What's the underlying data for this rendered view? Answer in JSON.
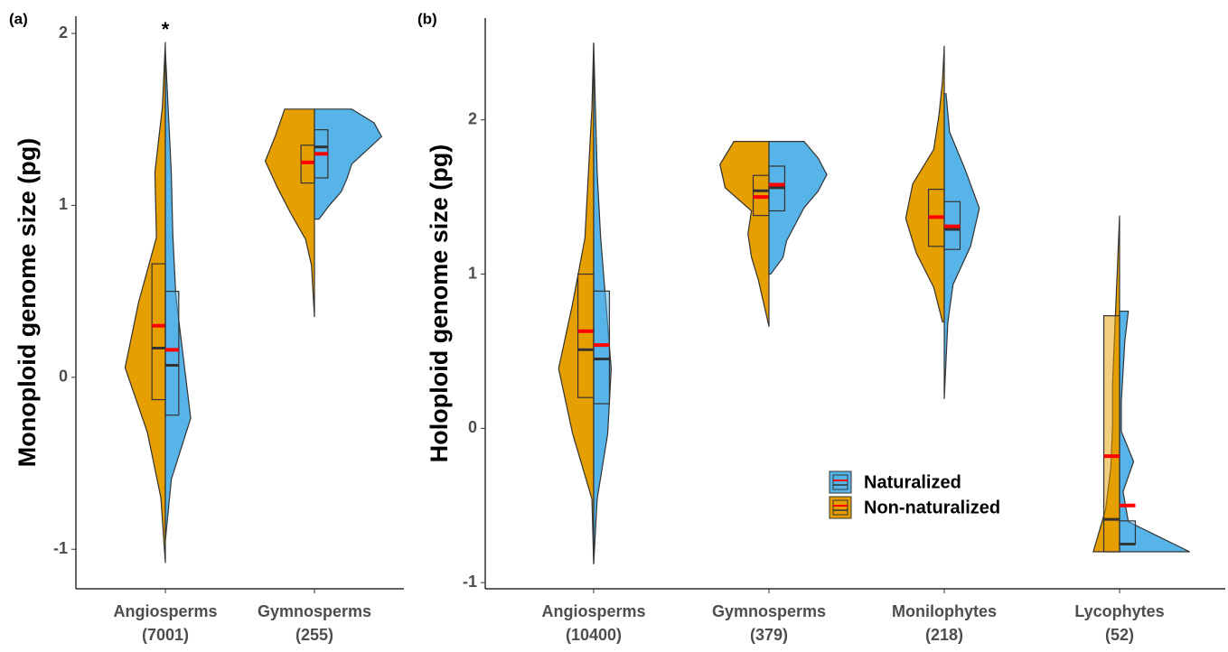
{
  "chart_data": [
    {
      "type": "violin",
      "panel_label": "(a)",
      "ylabel": "Monoploid genome size (pg)",
      "annotation": "*",
      "categories": [
        "Angiosperms",
        "Gymnosperms"
      ],
      "category_counts": [
        "(7001)",
        "(255)"
      ],
      "ylim": [
        -1.23,
        2.1
      ],
      "yticks": [
        -1,
        0,
        1,
        2
      ],
      "series": [
        {
          "name": "Non-naturalized",
          "color": "#E69F00",
          "q1": [
            -0.13,
            1.13
          ],
          "median": [
            0.17,
            1.25
          ],
          "q3": [
            0.66,
            1.35
          ],
          "mean": [
            0.3,
            1.25
          ],
          "min": [
            -1.08,
            0.35
          ],
          "max": [
            1.95,
            1.56
          ],
          "density": [
            [
              0,
              0.03,
              0.12,
              0.27,
              0.18,
              0.06,
              0.07,
              0.02,
              0
            ],
            [
              0,
              0.01,
              0.02,
              0.06,
              0.16,
              0.25,
              0.33,
              0.26,
              0.2
            ]
          ]
        },
        {
          "name": "Naturalized",
          "color": "#56B4E9",
          "q1": [
            -0.22,
            1.16
          ],
          "median": [
            0.07,
            1.34
          ],
          "q3": [
            0.5,
            1.44
          ],
          "mean": [
            0.16,
            1.3
          ],
          "min": [
            -0.95,
            0.92
          ],
          "max": [
            1.9,
            1.56
          ],
          "density": [
            [
              0,
              0.04,
              0.17,
              0.12,
              0.07,
              0.05,
              0.04,
              0.02,
              0
            ],
            [
              0.03,
              0.1,
              0.18,
              0.22,
              0.25,
              0.35,
              0.45,
              0.4,
              0.25
            ]
          ]
        }
      ]
    },
    {
      "type": "violin",
      "panel_label": "(b)",
      "ylabel": "Holoploid genome size (pg)",
      "legend": "inside",
      "categories": [
        "Angiosperms",
        "Gymnosperms",
        "Monilophytes",
        "Lycophytes"
      ],
      "category_counts": [
        "(10400)",
        "(379)",
        "(218)",
        "(52)"
      ],
      "ylim": [
        -1.04,
        2.66
      ],
      "yticks": [
        -1,
        0,
        1,
        2
      ],
      "series": [
        {
          "name": "Non-naturalized",
          "color": "#E69F00",
          "q1": [
            0.2,
            1.38,
            1.18,
            -0.8
          ],
          "median": [
            0.51,
            1.54,
            1.37,
            -0.59
          ],
          "q3": [
            1.0,
            1.64,
            1.55,
            0.73
          ],
          "mean": [
            0.63,
            1.5,
            1.37,
            -0.18
          ],
          "min": [
            -0.88,
            0.66,
            0.69,
            -0.8
          ],
          "max": [
            2.5,
            1.86,
            2.48,
            1.38
          ],
          "density": [
            [
              0,
              0.01,
              0.12,
              0.2,
              0.12,
              0.05,
              0.03,
              0.01,
              0
            ],
            [
              0,
              0.03,
              0.06,
              0.1,
              0.12,
              0.1,
              0.25,
              0.28,
              0.2
            ],
            [
              0.01,
              0.06,
              0.16,
              0.22,
              0.18,
              0.06,
              0.03,
              0.01,
              0
            ],
            [
              0.15,
              0.08,
              0.05,
              0.04,
              0.04,
              0.03,
              0.02,
              0.01,
              0
            ]
          ]
        },
        {
          "name": "Naturalized",
          "color": "#56B4E9",
          "q1": [
            0.16,
            1.41,
            1.16,
            -0.75
          ],
          "median": [
            0.45,
            1.56,
            1.29,
            -0.75
          ],
          "q3": [
            0.89,
            1.7,
            1.47,
            -0.6
          ],
          "mean": [
            0.54,
            1.58,
            1.31,
            -0.5
          ],
          "min": [
            -0.88,
            1.0,
            0.19,
            -0.8
          ],
          "max": [
            2.5,
            1.86,
            2.17,
            0.76
          ],
          "density": [
            [
              0,
              0.02,
              0.08,
              0.1,
              0.07,
              0.04,
              0.02,
              0.01,
              0
            ],
            [
              0.01,
              0.08,
              0.1,
              0.15,
              0.2,
              0.28,
              0.33,
              0.28,
              0.2
            ],
            [
              0,
              0.01,
              0.02,
              0.05,
              0.15,
              0.2,
              0.12,
              0.03,
              0.01
            ],
            [
              0.4,
              0.05,
              0.02,
              0.08,
              0.01,
              0.01,
              0.02,
              0.03,
              0.05
            ]
          ]
        }
      ]
    }
  ]
}
